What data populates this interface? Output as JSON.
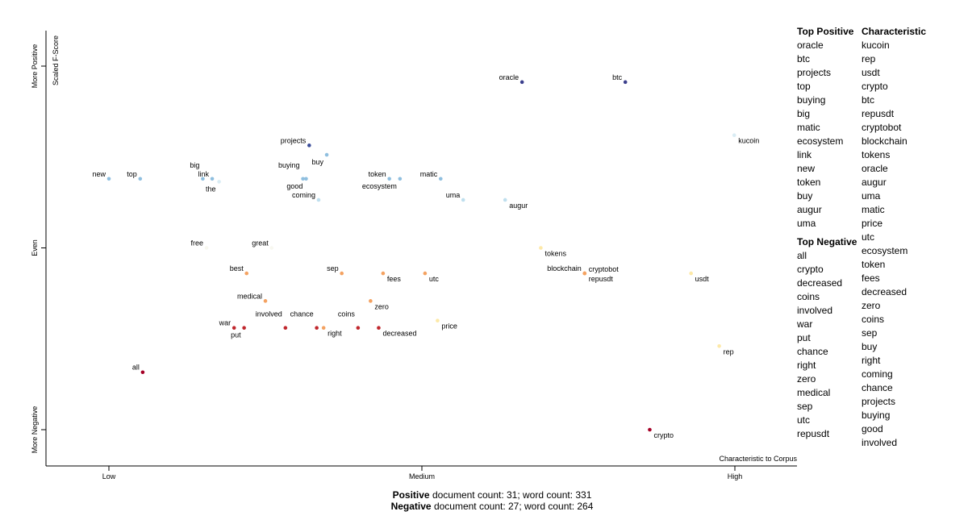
{
  "chart_data": {
    "type": "scatter",
    "x_ticks": [
      {
        "label": "Low",
        "value": 0.0
      },
      {
        "label": "Medium",
        "value": 0.5
      },
      {
        "label": "High",
        "value": 1.0
      }
    ],
    "y_ticks": [
      {
        "label": "More Positive",
        "value": 1.0
      },
      {
        "label": "Even",
        "value": 0.5
      },
      {
        "label": "More Negative",
        "value": 0.0
      }
    ],
    "xlabel": "Characteristic to Corpus",
    "ylabel": "Scaled F-Score",
    "xlim": [
      -0.1,
      1.1
    ],
    "ylim": [
      -0.08,
      1.05
    ],
    "points": [
      {
        "term": "oracle",
        "x": 0.66,
        "y": 0.956,
        "color": "#3b3f8c",
        "lp": "tl"
      },
      {
        "term": "btc",
        "x": 0.825,
        "y": 0.956,
        "color": "#3b3f8c",
        "lp": "tl"
      },
      {
        "term": "projects",
        "x": 0.32,
        "y": 0.782,
        "color": "#3b4d9a",
        "lp": "tl"
      },
      {
        "term": "buy",
        "x": 0.348,
        "y": 0.756,
        "color": "#8fbfdf",
        "lp": "bl"
      },
      {
        "term": "new",
        "x": 0.0,
        "y": 0.69,
        "color": "#8fbfdf",
        "lp": "tl"
      },
      {
        "term": "top",
        "x": 0.05,
        "y": 0.69,
        "color": "#8fbfdf",
        "lp": "tl"
      },
      {
        "term": "big",
        "x": 0.15,
        "y": 0.69,
        "color": "#8fbfdf",
        "lp": "tt"
      },
      {
        "term": "link",
        "x": 0.165,
        "y": 0.69,
        "color": "#8fbfdf",
        "lp": "tl"
      },
      {
        "term": "the",
        "x": 0.176,
        "y": 0.682,
        "color": "#d9ecf4",
        "lp": "bl"
      },
      {
        "term": "buying",
        "x": 0.31,
        "y": 0.69,
        "color": "#8fbfdf",
        "lp": "tt"
      },
      {
        "term": "good",
        "x": 0.315,
        "y": 0.69,
        "color": "#8fbfdf",
        "lp": "bl"
      },
      {
        "term": "token",
        "x": 0.448,
        "y": 0.69,
        "color": "#8fbfdf",
        "lp": "tl"
      },
      {
        "term": "ecosystem",
        "x": 0.465,
        "y": 0.69,
        "color": "#8fbfdf",
        "lp": "bl"
      },
      {
        "term": "matic",
        "x": 0.53,
        "y": 0.69,
        "color": "#8fbfdf",
        "lp": "tl"
      },
      {
        "term": "coming",
        "x": 0.335,
        "y": 0.632,
        "color": "#bfdfee",
        "lp": "tl"
      },
      {
        "term": "uma",
        "x": 0.566,
        "y": 0.632,
        "color": "#bfdfee",
        "lp": "tl"
      },
      {
        "term": "augur",
        "x": 0.633,
        "y": 0.632,
        "color": "#bfdfee",
        "lp": "br"
      },
      {
        "term": "kucoin",
        "x": 0.999,
        "y": 0.81,
        "color": "#d9ecf4",
        "lp": "br"
      },
      {
        "term": "free",
        "x": 0.156,
        "y": 0.5,
        "color": "#f8f8f0",
        "lp": "tl"
      },
      {
        "term": "great",
        "x": 0.26,
        "y": 0.5,
        "color": "#f8f8f0",
        "lp": "tl"
      },
      {
        "term": "tokens",
        "x": 0.69,
        "y": 0.5,
        "color": "#fde9a8",
        "lp": "br"
      },
      {
        "term": "blockchain",
        "x": 0.76,
        "y": 0.43,
        "color": "#f4a261",
        "lp": "tl"
      },
      {
        "term": "cryptobot",
        "x": 0.76,
        "y": 0.43,
        "color": "#f4a261",
        "lp": "tr"
      },
      {
        "term": "repusdt",
        "x": 0.76,
        "y": 0.43,
        "color": "#f4a261",
        "lp": "br"
      },
      {
        "term": "usdt",
        "x": 0.93,
        "y": 0.43,
        "color": "#fde9a8",
        "lp": "br"
      },
      {
        "term": "best",
        "x": 0.22,
        "y": 0.43,
        "color": "#f4a261",
        "lp": "tl"
      },
      {
        "term": "sep",
        "x": 0.372,
        "y": 0.43,
        "color": "#f4a261",
        "lp": "tl"
      },
      {
        "term": "fees",
        "x": 0.438,
        "y": 0.43,
        "color": "#f4a261",
        "lp": "br"
      },
      {
        "term": "utc",
        "x": 0.505,
        "y": 0.43,
        "color": "#f4a261",
        "lp": "br"
      },
      {
        "term": "medical",
        "x": 0.25,
        "y": 0.354,
        "color": "#f4a261",
        "lp": "tl"
      },
      {
        "term": "zero",
        "x": 0.418,
        "y": 0.354,
        "color": "#f4a261",
        "lp": "br"
      },
      {
        "term": "price",
        "x": 0.525,
        "y": 0.3,
        "color": "#fde9a8",
        "lp": "br"
      },
      {
        "term": "war",
        "x": 0.2,
        "y": 0.28,
        "color": "#c0272d",
        "lp": "tl"
      },
      {
        "term": "put",
        "x": 0.216,
        "y": 0.28,
        "color": "#c0272d",
        "lp": "bl"
      },
      {
        "term": "involved",
        "x": 0.282,
        "y": 0.28,
        "color": "#c0272d",
        "lp": "tt"
      },
      {
        "term": "chance",
        "x": 0.332,
        "y": 0.28,
        "color": "#c0272d",
        "lp": "tt"
      },
      {
        "term": "right",
        "x": 0.343,
        "y": 0.28,
        "color": "#f4a261",
        "lp": "br"
      },
      {
        "term": "coins",
        "x": 0.398,
        "y": 0.28,
        "color": "#c0272d",
        "lp": "tt"
      },
      {
        "term": "decreased",
        "x": 0.431,
        "y": 0.28,
        "color": "#c0272d",
        "lp": "br"
      },
      {
        "term": "rep",
        "x": 0.975,
        "y": 0.23,
        "color": "#fde9a8",
        "lp": "br"
      },
      {
        "term": "all",
        "x": 0.054,
        "y": 0.158,
        "color": "#a50026",
        "lp": "tl"
      },
      {
        "term": "crypto",
        "x": 0.864,
        "y": 0.0,
        "color": "#a50026",
        "lp": "br"
      }
    ]
  },
  "top_positive": {
    "title": "Top Positive",
    "items": [
      "oracle",
      "btc",
      "projects",
      "top",
      "buying",
      "big",
      "matic",
      "ecosystem",
      "link",
      "new",
      "token",
      "buy",
      "augur",
      "uma"
    ]
  },
  "top_negative": {
    "title": "Top Negative",
    "items": [
      "all",
      "crypto",
      "decreased",
      "coins",
      "involved",
      "war",
      "put",
      "chance",
      "right",
      "zero",
      "medical",
      "sep",
      "utc",
      "repusdt"
    ]
  },
  "characteristic": {
    "title": "Characteristic",
    "items": [
      "kucoin",
      "rep",
      "usdt",
      "crypto",
      "btc",
      "repusdt",
      "cryptobot",
      "blockchain",
      "tokens",
      "oracle",
      "augur",
      "uma",
      "matic",
      "price",
      "utc",
      "ecosystem",
      "token",
      "fees",
      "decreased",
      "zero",
      "coins",
      "sep",
      "buy",
      "right",
      "coming",
      "chance",
      "projects",
      "buying",
      "good",
      "involved"
    ]
  },
  "footer": {
    "positive_label": "Positive",
    "positive_text": " document count: 31; word count: 331",
    "negative_label": "Negative",
    "negative_text": " document count: 27; word count: 264"
  }
}
